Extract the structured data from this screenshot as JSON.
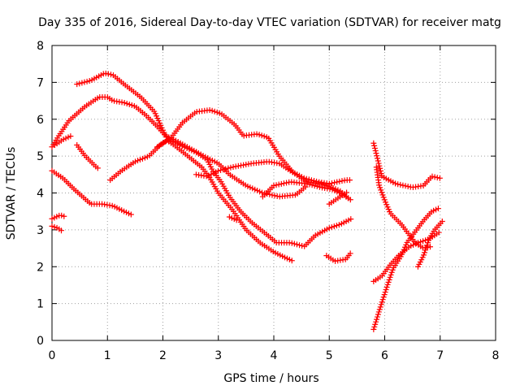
{
  "chart_data": {
    "type": "scatter",
    "title": "Day 335 of 2016, Sidereal Day-to-day VTEC variation (SDTVAR) for receiver matg",
    "xlabel": "GPS time / hours",
    "ylabel": "SDTVAR / TECUs",
    "xlim": [
      0,
      8
    ],
    "ylim": [
      0,
      8
    ],
    "xticks": [
      "0",
      "1",
      "2",
      "3",
      "4",
      "5",
      "6",
      "7",
      "8"
    ],
    "yticks": [
      "0",
      "1",
      "2",
      "3",
      "4",
      "5",
      "6",
      "7",
      "8"
    ],
    "grid": true,
    "marker": "plus",
    "color": "#ff0000",
    "series": [
      {
        "name": "s1",
        "points": [
          [
            0.0,
            5.25
          ],
          [
            0.1,
            5.5
          ],
          [
            0.3,
            5.95
          ],
          [
            0.6,
            6.35
          ],
          [
            0.85,
            6.6
          ],
          [
            1.0,
            6.6
          ],
          [
            1.1,
            6.5
          ],
          [
            1.3,
            6.45
          ],
          [
            1.5,
            6.35
          ],
          [
            1.7,
            6.1
          ],
          [
            1.9,
            5.8
          ],
          [
            2.05,
            5.55
          ],
          [
            2.2,
            5.45
          ],
          [
            2.5,
            5.2
          ],
          [
            2.8,
            4.95
          ],
          [
            3.0,
            4.8
          ],
          [
            3.2,
            4.5
          ],
          [
            3.5,
            4.2
          ],
          [
            3.8,
            4.0
          ],
          [
            4.1,
            3.9
          ],
          [
            4.4,
            3.95
          ],
          [
            4.6,
            4.2
          ]
        ]
      },
      {
        "name": "s2",
        "points": [
          [
            0.05,
            5.3
          ],
          [
            0.2,
            5.45
          ],
          [
            0.35,
            5.55
          ]
        ]
      },
      {
        "name": "s3",
        "points": [
          [
            0.45,
            6.95
          ],
          [
            0.7,
            7.05
          ],
          [
            0.95,
            7.25
          ],
          [
            1.1,
            7.2
          ],
          [
            1.3,
            6.95
          ],
          [
            1.6,
            6.6
          ],
          [
            1.85,
            6.2
          ],
          [
            2.0,
            5.7
          ],
          [
            2.1,
            5.4
          ],
          [
            2.2,
            5.3
          ],
          [
            2.45,
            5.0
          ],
          [
            2.7,
            4.7
          ],
          [
            2.85,
            4.4
          ],
          [
            3.0,
            4.0
          ],
          [
            3.25,
            3.55
          ],
          [
            3.5,
            3.0
          ],
          [
            3.75,
            2.65
          ],
          [
            4.0,
            2.4
          ],
          [
            4.2,
            2.25
          ],
          [
            4.35,
            2.15
          ]
        ]
      },
      {
        "name": "s4",
        "points": [
          [
            0.45,
            5.3
          ],
          [
            0.6,
            5.0
          ],
          [
            0.8,
            4.7
          ],
          [
            0.85,
            4.65
          ]
        ]
      },
      {
        "name": "s5",
        "points": [
          [
            0.0,
            4.6
          ],
          [
            0.2,
            4.4
          ],
          [
            0.4,
            4.1
          ],
          [
            0.55,
            3.9
          ],
          [
            0.7,
            3.7
          ],
          [
            0.9,
            3.7
          ],
          [
            1.1,
            3.65
          ],
          [
            1.3,
            3.5
          ],
          [
            1.45,
            3.4
          ]
        ]
      },
      {
        "name": "s6",
        "points": [
          [
            0.0,
            3.3
          ],
          [
            0.15,
            3.4
          ],
          [
            0.25,
            3.35
          ]
        ]
      },
      {
        "name": "s7",
        "points": [
          [
            0.0,
            3.1
          ],
          [
            0.1,
            3.05
          ],
          [
            0.2,
            2.95
          ]
        ]
      },
      {
        "name": "s8",
        "points": [
          [
            1.05,
            4.35
          ],
          [
            1.25,
            4.6
          ],
          [
            1.5,
            4.85
          ],
          [
            1.75,
            5.0
          ],
          [
            1.95,
            5.3
          ],
          [
            2.15,
            5.5
          ],
          [
            2.35,
            5.9
          ],
          [
            2.6,
            6.2
          ],
          [
            2.85,
            6.25
          ],
          [
            3.05,
            6.15
          ],
          [
            3.3,
            5.85
          ],
          [
            3.45,
            5.55
          ],
          [
            3.7,
            5.6
          ],
          [
            3.9,
            5.5
          ],
          [
            4.1,
            5.0
          ],
          [
            4.35,
            4.55
          ],
          [
            4.6,
            4.3
          ],
          [
            4.85,
            4.25
          ],
          [
            5.05,
            4.15
          ],
          [
            5.2,
            4.05
          ],
          [
            5.35,
            3.85
          ]
        ]
      },
      {
        "name": "s9",
        "points": [
          [
            1.9,
            5.25
          ],
          [
            2.1,
            5.45
          ],
          [
            2.3,
            5.3
          ],
          [
            2.6,
            5.1
          ],
          [
            2.8,
            4.9
          ],
          [
            2.9,
            4.6
          ],
          [
            3.05,
            4.3
          ],
          [
            3.2,
            3.9
          ],
          [
            3.4,
            3.5
          ],
          [
            3.6,
            3.2
          ],
          [
            3.85,
            2.9
          ],
          [
            4.05,
            2.65
          ],
          [
            4.3,
            2.65
          ],
          [
            4.55,
            2.55
          ],
          [
            4.75,
            2.85
          ],
          [
            5.0,
            3.05
          ],
          [
            5.2,
            3.15
          ],
          [
            5.4,
            3.3
          ]
        ]
      },
      {
        "name": "s10",
        "points": [
          [
            2.6,
            4.5
          ],
          [
            2.8,
            4.45
          ],
          [
            3.0,
            4.6
          ],
          [
            3.25,
            4.7
          ],
          [
            3.6,
            4.8
          ],
          [
            3.9,
            4.85
          ],
          [
            4.1,
            4.8
          ],
          [
            4.3,
            4.6
          ],
          [
            4.55,
            4.4
          ],
          [
            4.8,
            4.3
          ],
          [
            5.0,
            4.25
          ],
          [
            5.3,
            4.35
          ],
          [
            5.4,
            4.35
          ]
        ]
      },
      {
        "name": "s11",
        "points": [
          [
            3.8,
            3.9
          ],
          [
            4.0,
            4.2
          ],
          [
            4.3,
            4.3
          ],
          [
            4.6,
            4.25
          ],
          [
            4.85,
            4.15
          ],
          [
            5.05,
            4.1
          ],
          [
            5.25,
            3.95
          ],
          [
            5.4,
            3.8
          ]
        ]
      },
      {
        "name": "s12",
        "points": [
          [
            5.0,
            3.7
          ],
          [
            5.2,
            3.9
          ],
          [
            5.35,
            4.05
          ]
        ]
      },
      {
        "name": "s13",
        "points": [
          [
            3.2,
            3.35
          ],
          [
            3.35,
            3.25
          ]
        ]
      },
      {
        "name": "s14",
        "points": [
          [
            4.95,
            2.3
          ],
          [
            5.1,
            2.15
          ],
          [
            5.3,
            2.2
          ],
          [
            5.4,
            2.4
          ]
        ]
      },
      {
        "name": "s15",
        "points": [
          [
            5.8,
            5.35
          ],
          [
            5.9,
            4.75
          ],
          [
            5.95,
            4.45
          ],
          [
            6.2,
            4.25
          ],
          [
            6.5,
            4.15
          ],
          [
            6.7,
            4.2
          ],
          [
            6.85,
            4.45
          ],
          [
            7.0,
            4.4
          ]
        ]
      },
      {
        "name": "s16",
        "points": [
          [
            5.85,
            4.7
          ],
          [
            5.9,
            4.2
          ],
          [
            6.0,
            3.8
          ],
          [
            6.1,
            3.45
          ],
          [
            6.3,
            3.15
          ],
          [
            6.45,
            2.85
          ],
          [
            6.55,
            2.65
          ],
          [
            6.7,
            2.5
          ],
          [
            6.85,
            2.55
          ]
        ]
      },
      {
        "name": "s17",
        "points": [
          [
            5.8,
            1.6
          ],
          [
            5.95,
            1.75
          ],
          [
            6.1,
            2.05
          ],
          [
            6.25,
            2.3
          ],
          [
            6.45,
            2.55
          ],
          [
            6.6,
            2.65
          ],
          [
            6.8,
            2.75
          ],
          [
            7.0,
            2.95
          ]
        ]
      },
      {
        "name": "s18",
        "points": [
          [
            5.8,
            0.3
          ],
          [
            5.9,
            0.8
          ],
          [
            6.05,
            1.5
          ],
          [
            6.15,
            1.95
          ],
          [
            6.3,
            2.3
          ],
          [
            6.4,
            2.65
          ],
          [
            6.55,
            2.95
          ],
          [
            6.7,
            3.25
          ],
          [
            6.85,
            3.5
          ],
          [
            7.0,
            3.6
          ]
        ]
      },
      {
        "name": "s19",
        "points": [
          [
            6.6,
            2.0
          ],
          [
            6.7,
            2.3
          ],
          [
            6.8,
            2.75
          ],
          [
            6.9,
            3.0
          ],
          [
            7.05,
            3.25
          ]
        ]
      }
    ]
  }
}
